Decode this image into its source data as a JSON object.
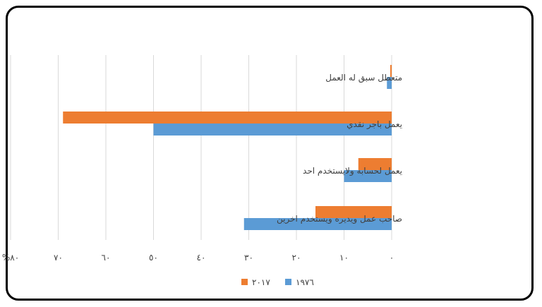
{
  "chart_data": {
    "type": "bar",
    "orientation": "horizontal",
    "categories": [
      "متعطل سبق له العمل",
      "يعمل باجر نقدي",
      "يعمل لحسابه ولايستخدم احد",
      "صاحب عمل ويديره ويستخدم اخرين"
    ],
    "series": [
      {
        "name": "٢٠١٧",
        "color": "#ED7D31",
        "values": [
          0.3,
          69,
          7,
          16
        ]
      },
      {
        "name": "١٩٧٦",
        "color": "#5B9BD5",
        "values": [
          1,
          50,
          10,
          31
        ]
      }
    ],
    "x_range": [
      0,
      80
    ],
    "x_ticks": [
      {
        "value": 0,
        "label": "٠"
      },
      {
        "value": 10,
        "label": "١٠"
      },
      {
        "value": 20,
        "label": "٢٠"
      },
      {
        "value": 30,
        "label": "٣٠"
      },
      {
        "value": 40,
        "label": "٤٠"
      },
      {
        "value": 50,
        "label": "٥٠"
      },
      {
        "value": 60,
        "label": "٦٠"
      },
      {
        "value": 70,
        "label": "٧٠"
      },
      {
        "value": 80,
        "label": "%٨٠"
      }
    ],
    "x_direction": "right-to-left",
    "grid": true,
    "legend_position": "bottom"
  }
}
